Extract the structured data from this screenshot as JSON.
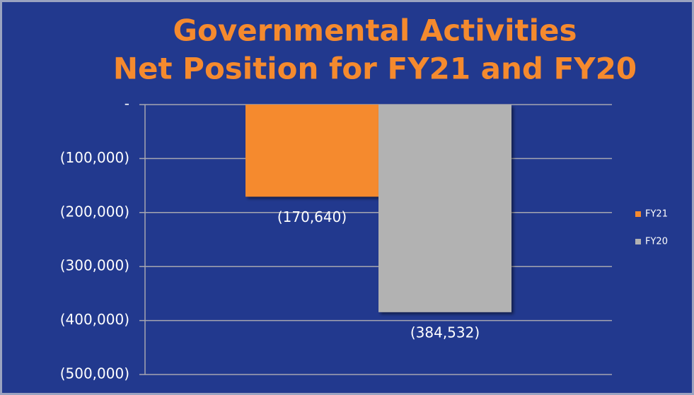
{
  "chart_data": {
    "type": "bar",
    "title": [
      "Governmental Activities",
      "Net Position for FY21 and FY20"
    ],
    "categories": [
      null
    ],
    "series": [
      {
        "name": "FY21",
        "color": "#f58a2e",
        "values": [
          -170640
        ],
        "value_labels": [
          "(170,640)"
        ]
      },
      {
        "name": "FY20",
        "color": "#b2b2b2",
        "values": [
          -384532
        ],
        "value_labels": [
          "(384,532)"
        ]
      }
    ],
    "ylim": [
      -500000,
      0
    ],
    "yticks": [
      {
        "value": 0,
        "label": "-"
      },
      {
        "value": -100000,
        "label": "(100,000)"
      },
      {
        "value": -200000,
        "label": "(200,000)"
      },
      {
        "value": -300000,
        "label": "(300,000)"
      },
      {
        "value": -400000,
        "label": "(400,000)"
      },
      {
        "value": -500000,
        "label": "(500,000)"
      }
    ],
    "grid": true,
    "legend": "right"
  }
}
